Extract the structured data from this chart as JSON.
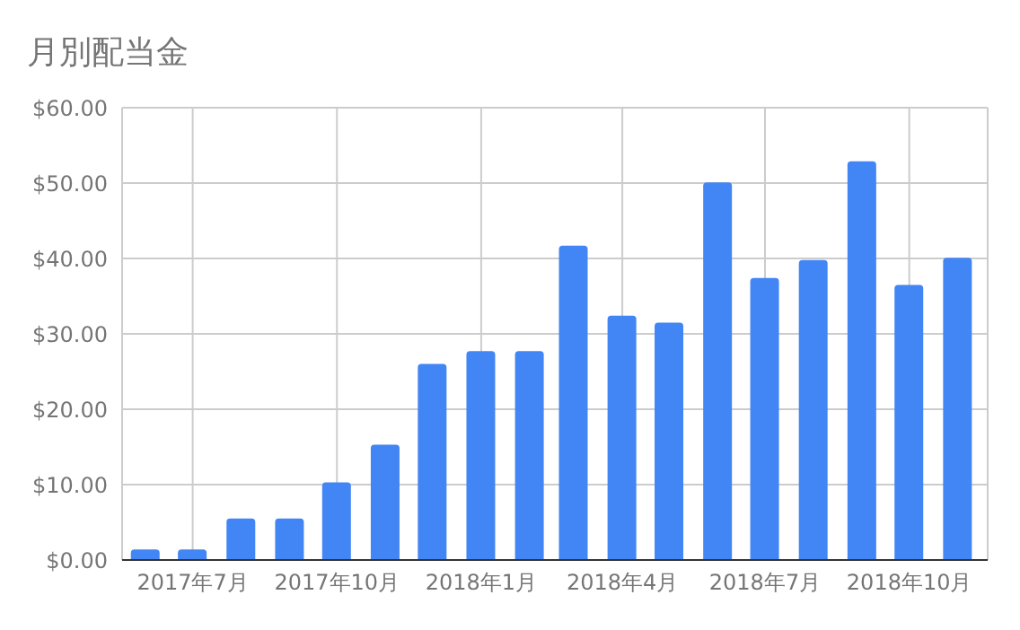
{
  "chart_data": {
    "type": "bar",
    "title": "月別配当金",
    "x": [
      "2017-06",
      "2017-07",
      "2017-08",
      "2017-09",
      "2017-10",
      "2017-11",
      "2017-12",
      "2018-01",
      "2018-02",
      "2018-03",
      "2018-04",
      "2018-05",
      "2018-06",
      "2018-07",
      "2018-08",
      "2018-09",
      "2018-10",
      "2018-11"
    ],
    "values": [
      1.4,
      1.4,
      5.5,
      5.5,
      10.3,
      15.3,
      26.0,
      27.7,
      27.7,
      41.7,
      32.4,
      31.5,
      50.1,
      37.4,
      39.8,
      52.9,
      36.5,
      40.1
    ],
    "color": "#4285f4",
    "xlim": [
      "2017-05-17",
      "2018-11-20"
    ],
    "xticks": [
      {
        "value": "2017-07",
        "label": "2017年7月"
      },
      {
        "value": "2017-10",
        "label": "2017年10月"
      },
      {
        "value": "2018-01",
        "label": "2018年1月"
      },
      {
        "value": "2018-04",
        "label": "2018年4月"
      },
      {
        "value": "2018-07",
        "label": "2018年7月"
      },
      {
        "value": "2018-10",
        "label": "2018年10月"
      }
    ],
    "ylim": [
      0,
      60
    ],
    "yticks": [
      {
        "value": 0,
        "label": "$0.00"
      },
      {
        "value": 10,
        "label": "$10.00"
      },
      {
        "value": 20,
        "label": "$20.00"
      },
      {
        "value": 30,
        "label": "$30.00"
      },
      {
        "value": 40,
        "label": "$40.00"
      },
      {
        "value": 50,
        "label": "$50.00"
      },
      {
        "value": 60,
        "label": "$60.00"
      }
    ],
    "grid": true,
    "legend": false
  }
}
